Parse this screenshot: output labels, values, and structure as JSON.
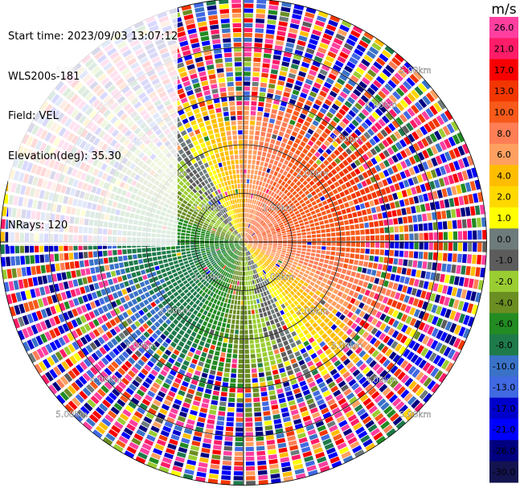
{
  "header": {
    "start_time": "Start time: 2023/09/03 13:07:12",
    "instrument": "WLS200s-181",
    "field": "Field: VEL",
    "elevation": "Elevation(deg): 35.30",
    "nrays": "NRays: 120"
  },
  "chart_data": {
    "type": "ppi",
    "field": "VEL",
    "units": "m/s",
    "nrays": 120,
    "elevation_deg": 35.3,
    "range_rings_km": [
      1.0,
      2.0,
      3.0,
      4.0,
      5.0
    ],
    "ring_labels": [
      "1.00km",
      "2.00km",
      "3.00km",
      "4.00km",
      "5.00km"
    ],
    "max_range_km": 5.0,
    "colorbar": {
      "title": "m/s",
      "tick_labels": [
        "26.0",
        "21.0",
        "17.0",
        "13.0",
        "10.0",
        "8.0",
        "6.0",
        "4.0",
        "2.0",
        "1.0",
        "0.0",
        "-1.0",
        "-2.0",
        "-4.0",
        "-6.0",
        "-8.0",
        "-10.0",
        "-13.0",
        "-17.0",
        "-21.0",
        "-26.0",
        "-30.0"
      ],
      "colors": [
        "#ff3fa0",
        "#ff1c68",
        "#f80000",
        "#f23600",
        "#f75a1a",
        "#ff7e55",
        "#ffa060",
        "#ffbd00",
        "#ffd800",
        "#ffff00",
        "#6e7b7b",
        "#5c5c5c",
        "#9acd32",
        "#6b8e23",
        "#228b22",
        "#1e7a4a",
        "#3a72c8",
        "#4169e1",
        "#0000cd",
        "#0000ff",
        "#000080",
        "#131350"
      ]
    },
    "velocity_pattern": "positive (receding) winds toward the north-east, negative (approaching) winds toward the south and south-west; data becomes noisy beyond about 2.5 km"
  }
}
